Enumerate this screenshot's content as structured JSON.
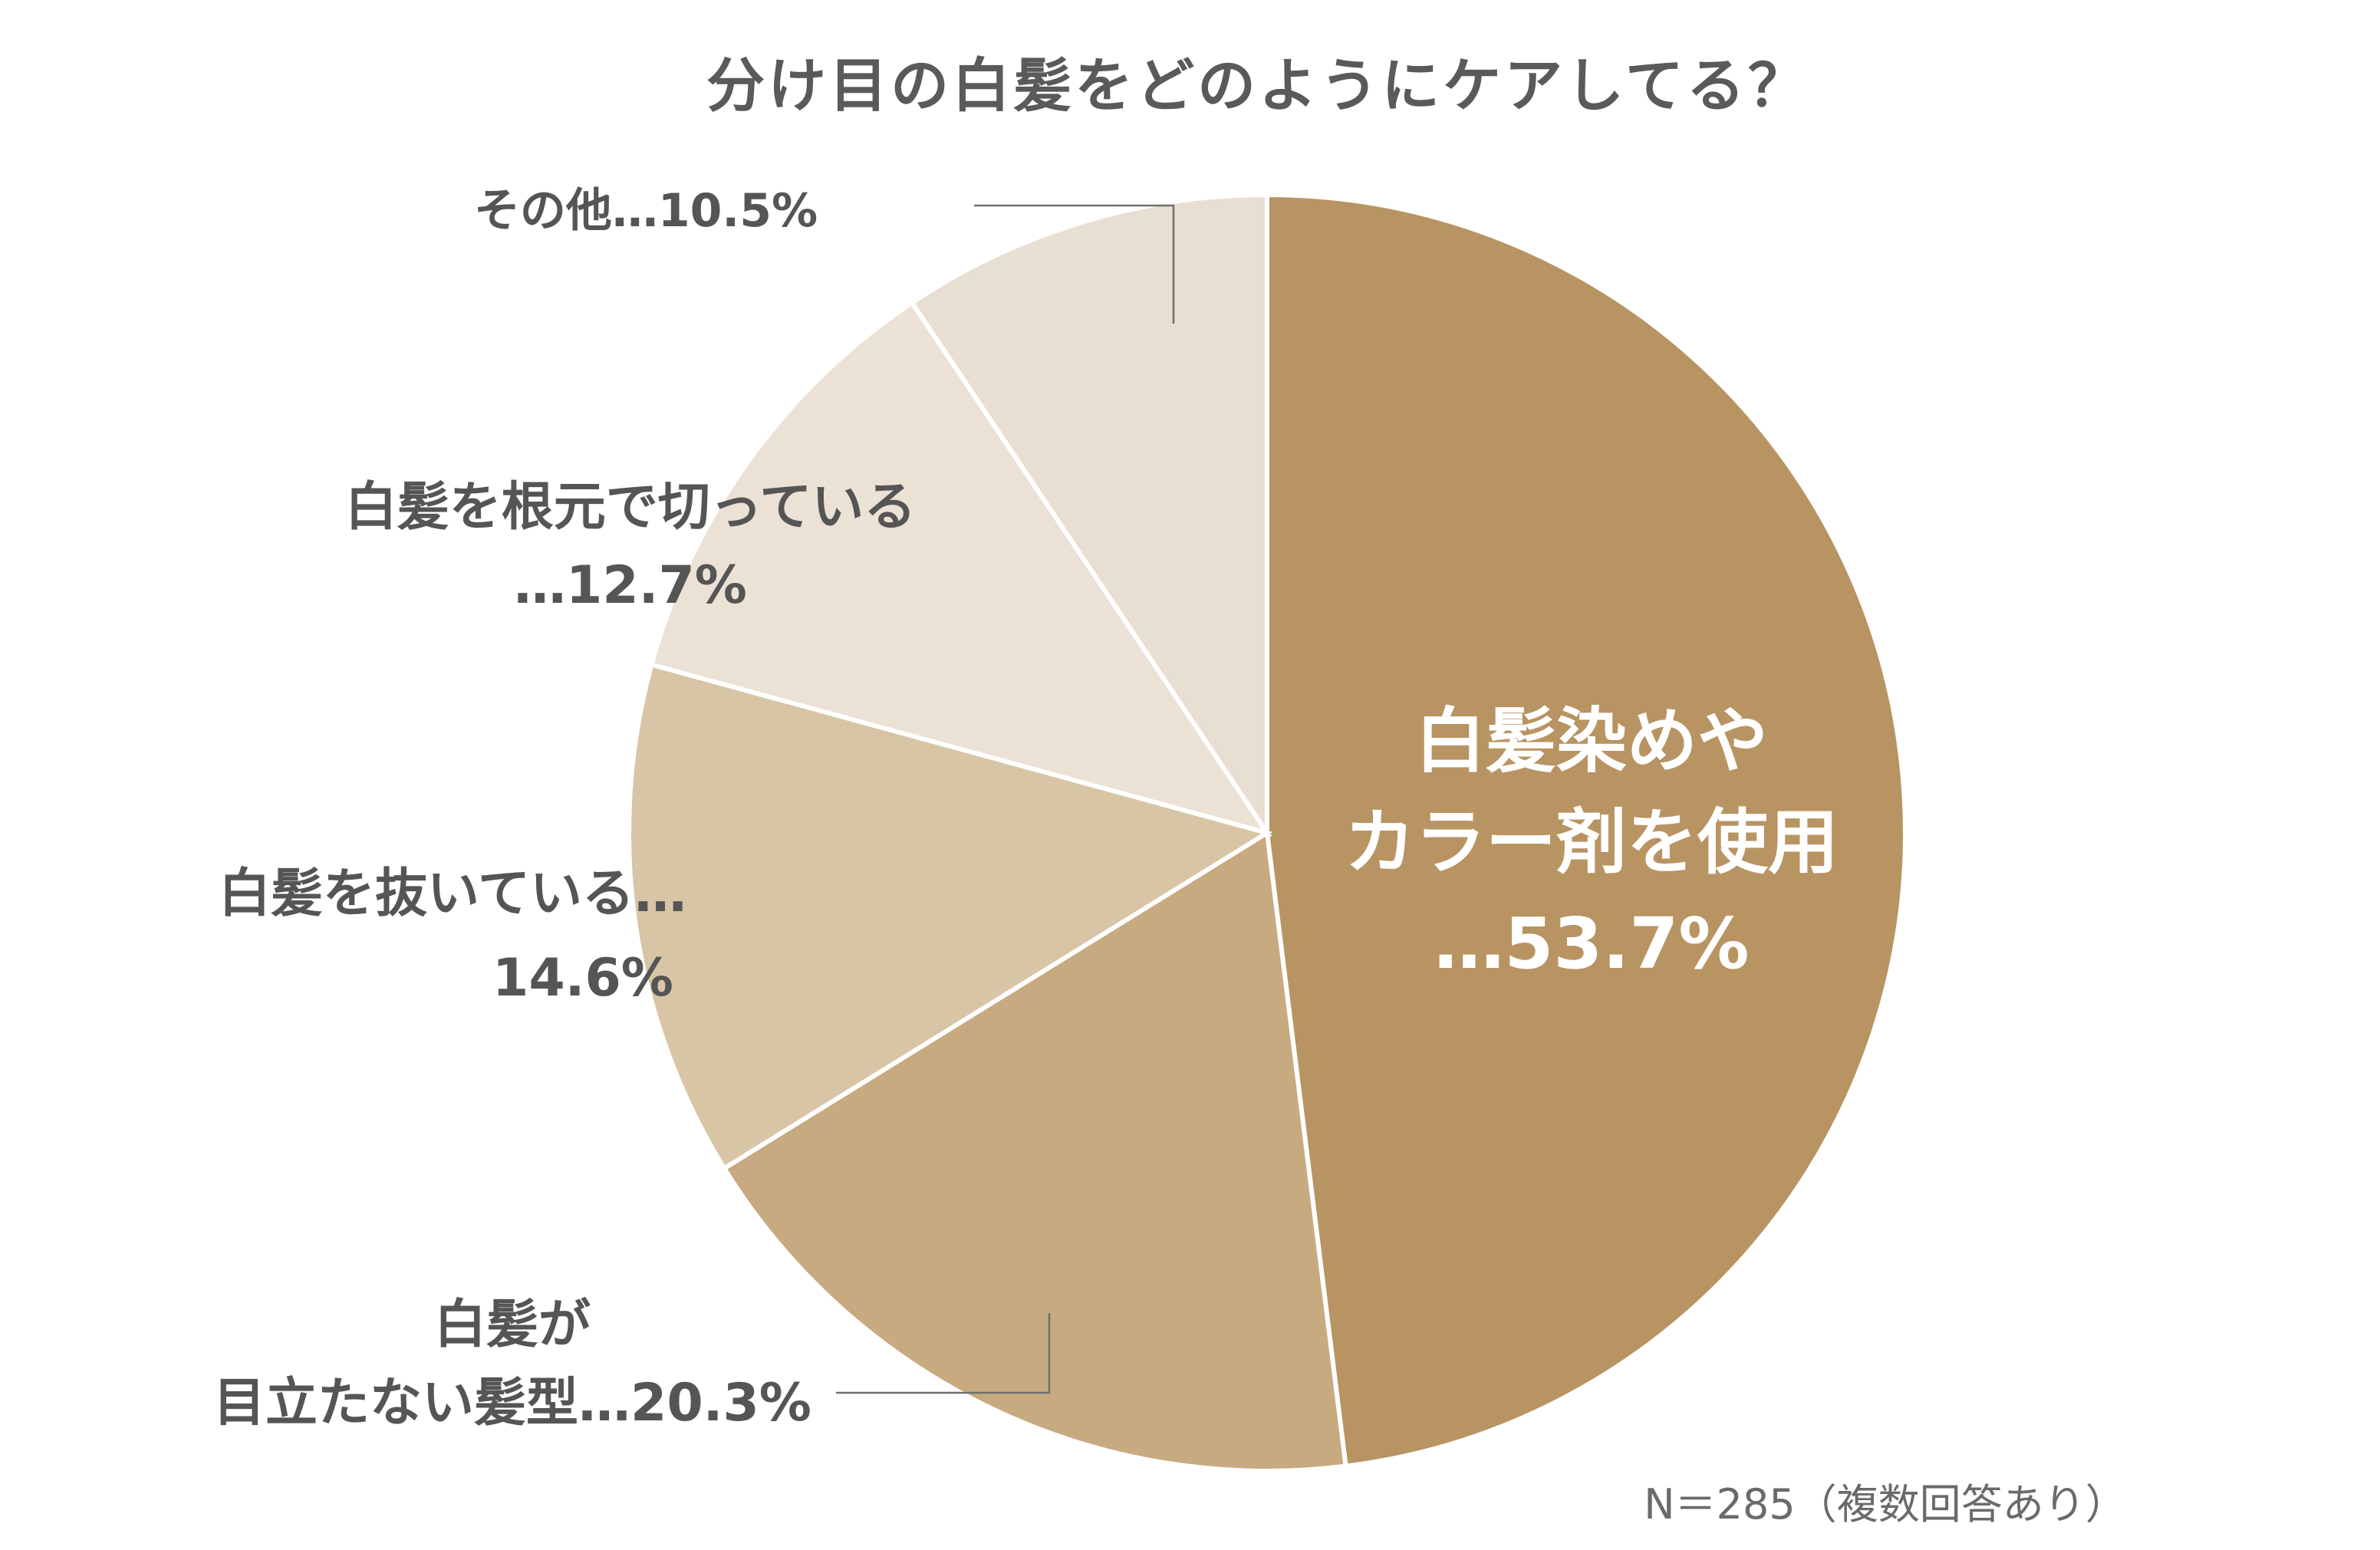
{
  "chart_data": {
    "type": "pie",
    "title": "分け目の白髪をどのようにケアしてる？",
    "note": "N＝285（複数回答あり）",
    "start": "12 o'clock",
    "direction": "clockwise",
    "slices": [
      {
        "category": "白髪染めやカラー剤を使用",
        "value": 53.7,
        "label_lines": [
          "白髪染めや",
          "カラー剤を使用",
          "…53.7%"
        ],
        "color": "#b89463",
        "label_color": "#ffffff",
        "label_position": "inside"
      },
      {
        "category": "白髪が目立たない髪型",
        "value": 20.3,
        "label_lines": [
          "白髪が",
          "目立たない髪型…20.3%"
        ],
        "color": "#c7aa80",
        "label_color": "#555555",
        "label_position": "outside-left-bottom"
      },
      {
        "category": "白髪を抜いている",
        "value": 14.6,
        "label_lines": [
          "白髪を抜いている…",
          "14.6%"
        ],
        "color": "#d8c5a6",
        "label_color": "#555555",
        "label_position": "outside-left"
      },
      {
        "category": "白髪を根元で切っている",
        "value": 12.7,
        "label_lines": [
          "白髪を根元で切っている",
          "…12.7%"
        ],
        "color": "#ebe1d5",
        "label_color": "#555555",
        "label_position": "outside-left"
      },
      {
        "category": "その他",
        "value": 10.5,
        "label_lines": [
          "その他…10.5%"
        ],
        "color": "#e8dfd2",
        "label_color": "#555555",
        "label_position": "outside-left-top"
      }
    ]
  }
}
